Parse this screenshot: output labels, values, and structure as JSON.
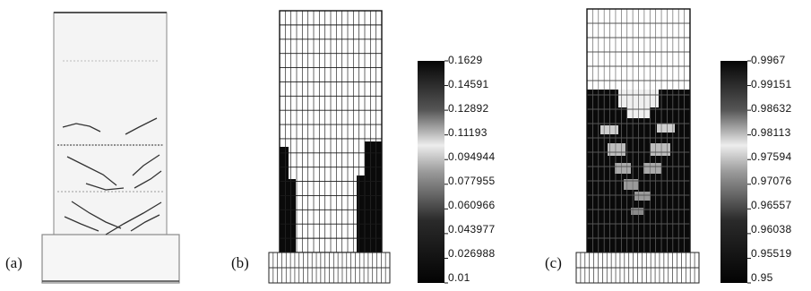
{
  "figure": {
    "panels": [
      {
        "id": "a",
        "label": "(a)"
      },
      {
        "id": "b",
        "label": "(b)"
      },
      {
        "id": "c",
        "label": "(c)"
      }
    ],
    "legend_b": {
      "ticks": [
        "0.1629",
        "0.14591",
        "0.12892",
        "0.11193",
        "0.094944",
        "0.077955",
        "0.060966",
        "0.043977",
        "0.026988",
        "0.01"
      ]
    },
    "legend_c": {
      "ticks": [
        "0.9967",
        "0.99151",
        "0.98632",
        "0.98113",
        "0.97594",
        "0.97076",
        "0.96557",
        "0.96038",
        "0.95519",
        "0.95"
      ]
    },
    "colors": {
      "dark": "#0a0a0a",
      "mid": "#7a7a7a",
      "light": "#d8d8d8",
      "crack": "#333333"
    }
  }
}
